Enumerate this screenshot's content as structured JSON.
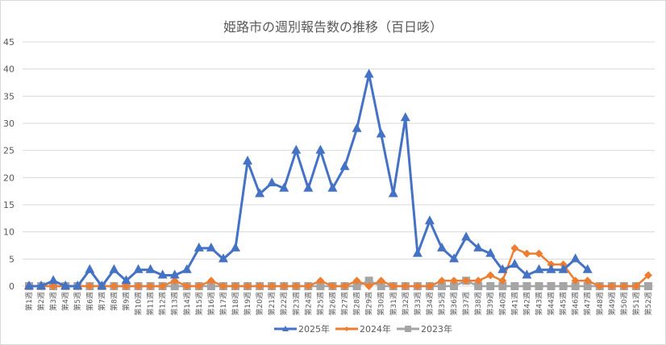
{
  "chart_data": {
    "type": "line",
    "title": "姫路市の週別報告数の推移（百日咳）",
    "xlabel": "",
    "ylabel": "",
    "ylim": [
      0,
      45
    ],
    "yticks": [
      0,
      5,
      10,
      15,
      20,
      25,
      30,
      35,
      40,
      45
    ],
    "grid": true,
    "legend_position": "bottom",
    "categories": [
      "第1週",
      "第2週",
      "第3週",
      "第4週",
      "第5週",
      "第6週",
      "第7週",
      "第8週",
      "第9週",
      "第10週",
      "第11週",
      "第12週",
      "第13週",
      "第14週",
      "第15週",
      "第16週",
      "第17週",
      "第18週",
      "第19週",
      "第20週",
      "第21週",
      "第22週",
      "第23週",
      "第24週",
      "第25週",
      "第26週",
      "第27週",
      "第28週",
      "第29週",
      "第30週",
      "第31週",
      "第32週",
      "第33週",
      "第34週",
      "第35週",
      "第36週",
      "第37週",
      "第38週",
      "第39週",
      "第40週",
      "第41週",
      "第42週",
      "第43週",
      "第44週",
      "第45週",
      "第46週",
      "第47週",
      "第48週",
      "第49週",
      "第50週",
      "第51週",
      "第52週"
    ],
    "series": [
      {
        "name": "2025年",
        "color": "#4472c4",
        "marker": "triangle",
        "values": [
          0,
          0,
          1,
          0,
          0,
          3,
          0,
          3,
          1,
          3,
          3,
          2,
          2,
          3,
          7,
          7,
          5,
          7,
          23,
          17,
          19,
          18,
          25,
          18,
          25,
          18,
          22,
          29,
          39,
          28,
          17,
          31,
          6,
          12,
          7,
          5,
          9,
          7,
          6,
          3,
          4,
          2,
          3,
          3,
          3,
          5,
          3
        ]
      },
      {
        "name": "2024年",
        "color": "#ed7d31",
        "marker": "diamond",
        "values": [
          0,
          0,
          0,
          0,
          0,
          0,
          0,
          0,
          0,
          0,
          0,
          0,
          1,
          0,
          0,
          1,
          0,
          0,
          0,
          0,
          0,
          0,
          0,
          0,
          1,
          0,
          0,
          1,
          0,
          1,
          0,
          0,
          0,
          0,
          1,
          1,
          1,
          1,
          2,
          1,
          7,
          6,
          6,
          4,
          4,
          1,
          1,
          0,
          0,
          0,
          0,
          2
        ]
      },
      {
        "name": "2023年",
        "color": "#a5a5a5",
        "marker": "square",
        "values": [
          0,
          0,
          0,
          0,
          0,
          0,
          0,
          0,
          0,
          0,
          0,
          0,
          0,
          0,
          0,
          0,
          0,
          0,
          0,
          0,
          0,
          0,
          0,
          0,
          0,
          0,
          0,
          0,
          1,
          0,
          0,
          0,
          0,
          0,
          0,
          0,
          1,
          0,
          0,
          0,
          0,
          0,
          0,
          0,
          0,
          0,
          0,
          0,
          0,
          0,
          0,
          0
        ]
      }
    ]
  }
}
